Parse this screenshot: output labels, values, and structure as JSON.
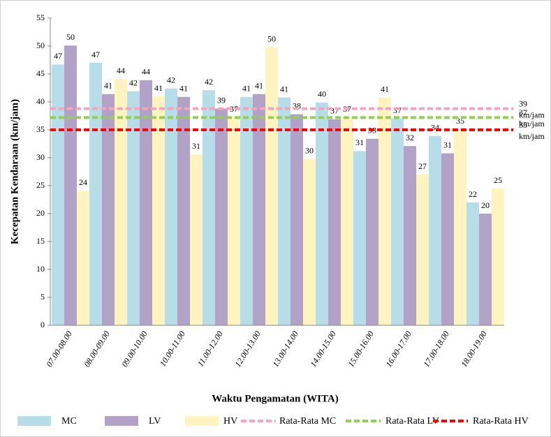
{
  "chart_data": {
    "type": "bar",
    "xlabel": "Waktu Pengamatan (WITA)",
    "ylabel": "Kecepatan Kendaraan (km/jam)",
    "categories": [
      "07.00-08.00",
      "08.00-09.00",
      "09.00-10.00",
      "10.00-11.00",
      "11.00-12.00",
      "12.00-13.00",
      "13.00-14.00",
      "14.00-15.00",
      "15.00-16.00",
      "16.00-17.00",
      "17.00-18.00",
      "18.00-19.00"
    ],
    "series": [
      {
        "name": "MC",
        "color": "#b7dde8",
        "values": [
          46.7,
          47,
          41.9,
          42.4,
          42.1,
          40.9,
          40.8,
          39.9,
          31.2,
          37,
          33.9,
          22
        ],
        "value_labels": [
          "47",
          "47",
          "42",
          "42",
          "42",
          "41",
          "41",
          "40",
          "31",
          "37",
          "34",
          "22"
        ]
      },
      {
        "name": "LV",
        "color": "#b3a2c7",
        "values": [
          50.1,
          41.4,
          43.9,
          40.9,
          38.8,
          41.4,
          37.8,
          36.9,
          33.4,
          32.1,
          30.8,
          20
        ],
        "value_labels": [
          "50",
          "41",
          "44",
          "41",
          "39",
          "41",
          "38",
          "37",
          "33",
          "32",
          "31",
          "20"
        ]
      },
      {
        "name": "HV",
        "color": "#fff4bf",
        "values": [
          24.1,
          44.1,
          41,
          30.6,
          37.2,
          49.8,
          29.8,
          37.2,
          40.8,
          27,
          35.1,
          24.5
        ],
        "value_labels": [
          "24",
          "44",
          "41",
          "31",
          "37",
          "50",
          "30",
          "37",
          "41",
          "27",
          "35",
          "25"
        ]
      }
    ],
    "averages": [
      {
        "name": "Rata-Rata MC",
        "color": "#f4a6bd",
        "value": 38.8,
        "value_label": "39"
      },
      {
        "name": "Rata-Rata LV",
        "color": "#92d050",
        "value": 37.2,
        "value_label": "37"
      },
      {
        "name": "Rata-Rata HV",
        "color": "#ff0000",
        "value": 35,
        "value_label": "35"
      }
    ],
    "unit_label": "km/jam",
    "ylim": [
      0,
      55
    ],
    "yticks": [
      0,
      5,
      10,
      15,
      20,
      25,
      30,
      35,
      40,
      45,
      50,
      55
    ]
  }
}
